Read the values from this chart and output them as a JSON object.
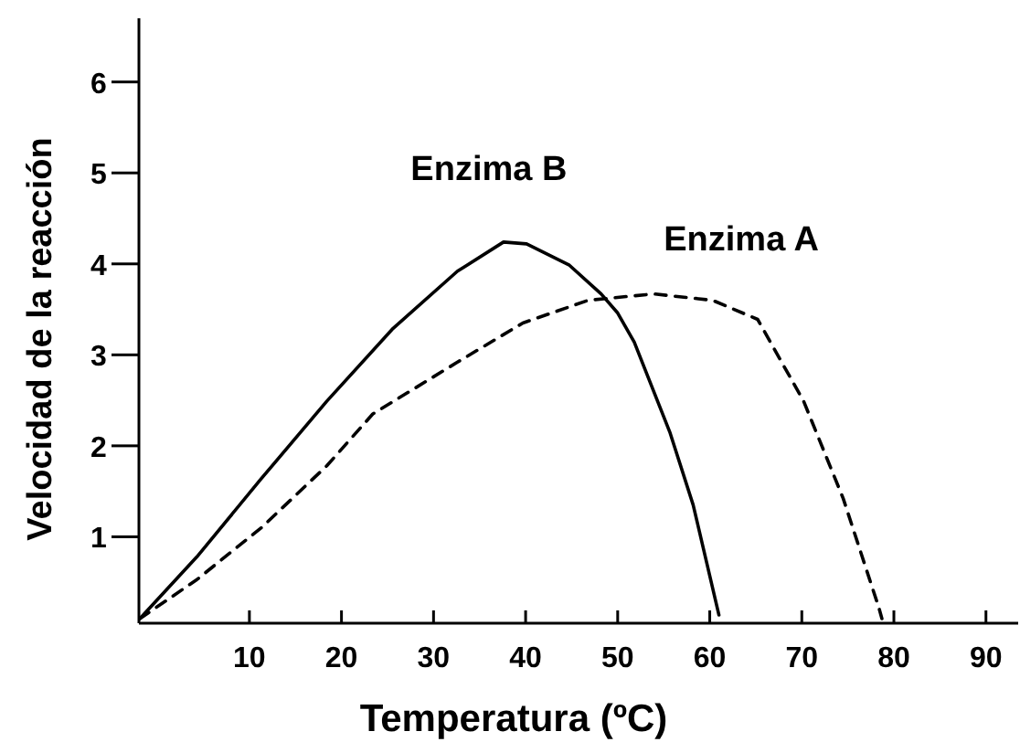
{
  "chart_data": {
    "type": "line",
    "xlabel": "Temperatura (ºC)",
    "ylabel": "Velocidad de la reacción",
    "xlim": [
      -2,
      93.5
    ],
    "ylim": [
      0.05,
      6.7
    ],
    "xticks": [
      10,
      20,
      30,
      40,
      50,
      60,
      70,
      80,
      90
    ],
    "yticks": [
      1,
      2,
      3,
      4,
      5,
      6
    ],
    "grid": false,
    "legend": false,
    "marker": "none",
    "series": [
      {
        "name": "Enzima B",
        "color": "#000000",
        "line_style": "solid",
        "x": [
          -1.9,
          4.3,
          11.3,
          18.4,
          25.5,
          32.6,
          37.6,
          40.1,
          44.7,
          48.2,
          50,
          51.8,
          55.7,
          58.2,
          61
        ],
        "values": [
          0.1,
          0.78,
          1.64,
          2.49,
          3.28,
          3.92,
          4.24,
          4.22,
          3.99,
          3.67,
          3.46,
          3.14,
          2.14,
          1.35,
          0.14
        ]
      },
      {
        "name": "Enzima A",
        "color": "#000000",
        "line_style": "dashed",
        "x": [
          -1.9,
          4.3,
          11.3,
          18.4,
          23.4,
          32.6,
          39.7,
          46.8,
          53.9,
          60.3,
          65.2,
          70.2,
          74.5,
          78.4,
          78.7
        ],
        "values": [
          0.1,
          0.53,
          1.1,
          1.78,
          2.35,
          2.92,
          3.35,
          3.6,
          3.67,
          3.6,
          3.39,
          2.49,
          1.42,
          0.21,
          0.1
        ]
      }
    ]
  }
}
